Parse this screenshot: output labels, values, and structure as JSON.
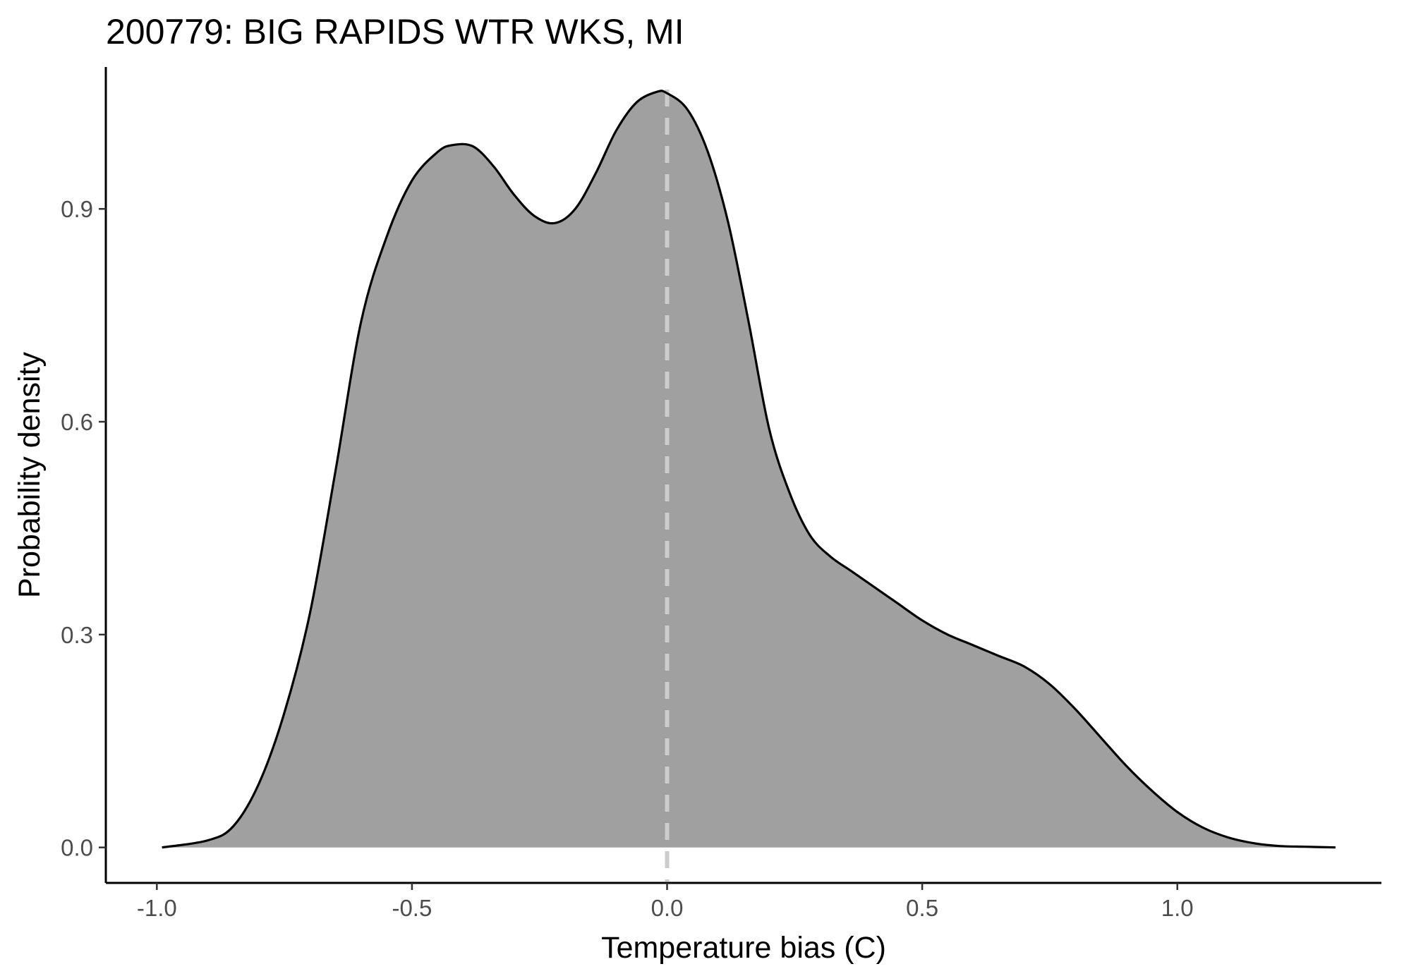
{
  "chart_data": {
    "type": "area",
    "title": "200779: BIG RAPIDS WTR WKS, MI",
    "xlabel": "Temperature bias (C)",
    "ylabel": "Probability density",
    "xlim": [
      -1.1,
      1.4
    ],
    "ylim": [
      -0.05,
      1.1
    ],
    "x_ticks": [
      -1.0,
      -0.5,
      0.0,
      0.5,
      1.0
    ],
    "x_tick_labels": [
      "-1.0",
      "-0.5",
      "0.0",
      "0.5",
      "1.0"
    ],
    "y_ticks": [
      0.0,
      0.3,
      0.6,
      0.9
    ],
    "y_tick_labels": [
      "0.0",
      "0.3",
      "0.6",
      "0.9"
    ],
    "grid": false,
    "reference_line": {
      "x": 0.0,
      "style": "dashed",
      "color": "#cccccc"
    },
    "fill_color": "#a0a0a0",
    "line_color": "#000000",
    "series": [
      {
        "x": [
          -0.99,
          -0.9,
          -0.85,
          -0.8,
          -0.75,
          -0.7,
          -0.65,
          -0.6,
          -0.55,
          -0.5,
          -0.45,
          -0.42,
          -0.38,
          -0.34,
          -0.3,
          -0.26,
          -0.22,
          -0.18,
          -0.14,
          -0.1,
          -0.06,
          -0.02,
          0.0,
          0.04,
          0.08,
          0.12,
          0.16,
          0.2,
          0.24,
          0.28,
          0.32,
          0.36,
          0.4,
          0.45,
          0.5,
          0.55,
          0.6,
          0.65,
          0.7,
          0.75,
          0.8,
          0.85,
          0.9,
          0.95,
          1.0,
          1.05,
          1.1,
          1.15,
          1.2,
          1.25,
          1.31
        ],
        "y": [
          0.0,
          0.01,
          0.03,
          0.09,
          0.19,
          0.33,
          0.53,
          0.74,
          0.86,
          0.94,
          0.98,
          0.99,
          0.988,
          0.96,
          0.92,
          0.89,
          0.88,
          0.9,
          0.95,
          1.01,
          1.05,
          1.065,
          1.063,
          1.04,
          0.98,
          0.88,
          0.74,
          0.59,
          0.5,
          0.44,
          0.41,
          0.39,
          0.37,
          0.345,
          0.32,
          0.3,
          0.285,
          0.27,
          0.255,
          0.23,
          0.195,
          0.155,
          0.115,
          0.08,
          0.05,
          0.028,
          0.014,
          0.006,
          0.002,
          0.001,
          0.0
        ]
      }
    ]
  }
}
